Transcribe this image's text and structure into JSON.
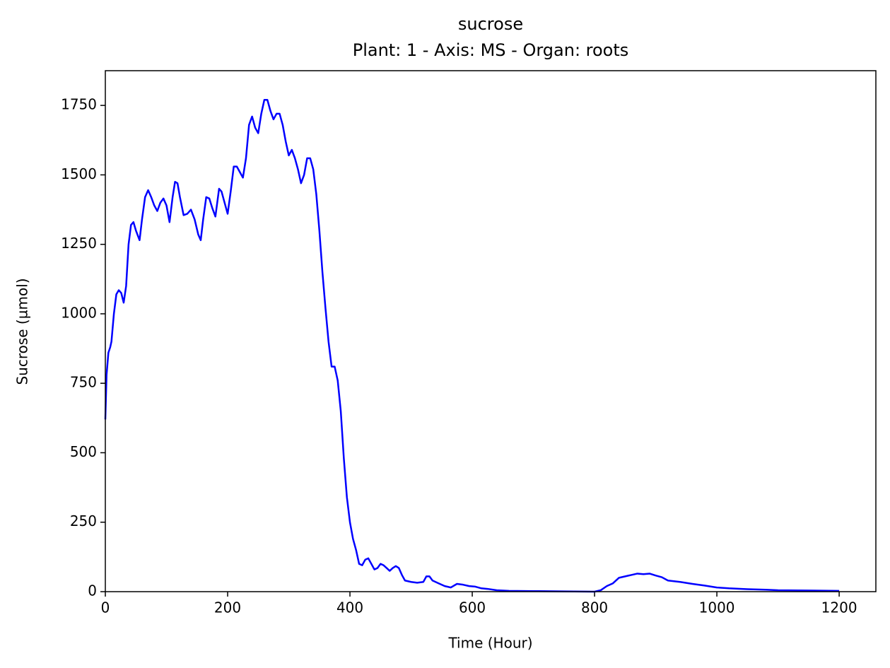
{
  "chart_data": {
    "type": "line",
    "title": "sucrose",
    "subtitle": "Plant: 1 - Axis: MS - Organ: roots",
    "x_label": "Time (Hour)",
    "y_label": "Sucrose (µmol)",
    "color": "#0000ff",
    "xlim": [
      0,
      1260
    ],
    "ylim": [
      0,
      1875
    ],
    "xticks": [
      0,
      200,
      400,
      600,
      800,
      1000,
      1200
    ],
    "yticks": [
      0,
      250,
      500,
      750,
      1000,
      1250,
      1500,
      1750
    ],
    "x": [
      0,
      2,
      5,
      8,
      10,
      14,
      18,
      22,
      26,
      30,
      34,
      38,
      42,
      46,
      50,
      56,
      60,
      65,
      70,
      75,
      80,
      85,
      90,
      95,
      100,
      105,
      110,
      114,
      118,
      122,
      128,
      134,
      140,
      146,
      152,
      156,
      160,
      165,
      170,
      175,
      180,
      186,
      190,
      195,
      200,
      205,
      210,
      215,
      220,
      225,
      230,
      235,
      240,
      245,
      250,
      255,
      260,
      265,
      270,
      275,
      280,
      285,
      290,
      295,
      300,
      305,
      310,
      315,
      320,
      325,
      330,
      335,
      340,
      345,
      350,
      355,
      360,
      365,
      370,
      375,
      380,
      385,
      390,
      395,
      400,
      405,
      410,
      415,
      420,
      425,
      430,
      435,
      440,
      445,
      450,
      455,
      460,
      465,
      470,
      475,
      480,
      485,
      490,
      500,
      510,
      520,
      525,
      530,
      535,
      545,
      555,
      565,
      575,
      585,
      595,
      605,
      615,
      625,
      640,
      660,
      700,
      750,
      800,
      810,
      820,
      830,
      840,
      850,
      860,
      870,
      880,
      890,
      900,
      910,
      920,
      940,
      960,
      980,
      1000,
      1020,
      1050,
      1080,
      1100,
      1150,
      1200
    ],
    "values": [
      620,
      780,
      860,
      880,
      900,
      1000,
      1070,
      1085,
      1075,
      1040,
      1100,
      1250,
      1320,
      1330,
      1300,
      1265,
      1340,
      1420,
      1445,
      1420,
      1390,
      1370,
      1400,
      1415,
      1390,
      1330,
      1420,
      1475,
      1470,
      1420,
      1355,
      1360,
      1375,
      1340,
      1285,
      1265,
      1340,
      1420,
      1415,
      1380,
      1350,
      1450,
      1440,
      1400,
      1360,
      1440,
      1530,
      1530,
      1510,
      1490,
      1560,
      1680,
      1710,
      1670,
      1650,
      1720,
      1770,
      1770,
      1730,
      1700,
      1720,
      1720,
      1680,
      1620,
      1570,
      1590,
      1560,
      1520,
      1470,
      1500,
      1560,
      1560,
      1520,
      1430,
      1300,
      1150,
      1020,
      900,
      810,
      810,
      760,
      650,
      480,
      340,
      250,
      190,
      150,
      100,
      95,
      115,
      120,
      100,
      80,
      85,
      100,
      95,
      85,
      75,
      85,
      92,
      85,
      60,
      40,
      35,
      32,
      35,
      55,
      55,
      40,
      30,
      20,
      15,
      28,
      25,
      20,
      18,
      12,
      10,
      5,
      3,
      2,
      1,
      0,
      5,
      20,
      30,
      50,
      55,
      60,
      65,
      63,
      65,
      58,
      52,
      40,
      35,
      28,
      22,
      15,
      12,
      9,
      7,
      5,
      4,
      3
    ]
  }
}
